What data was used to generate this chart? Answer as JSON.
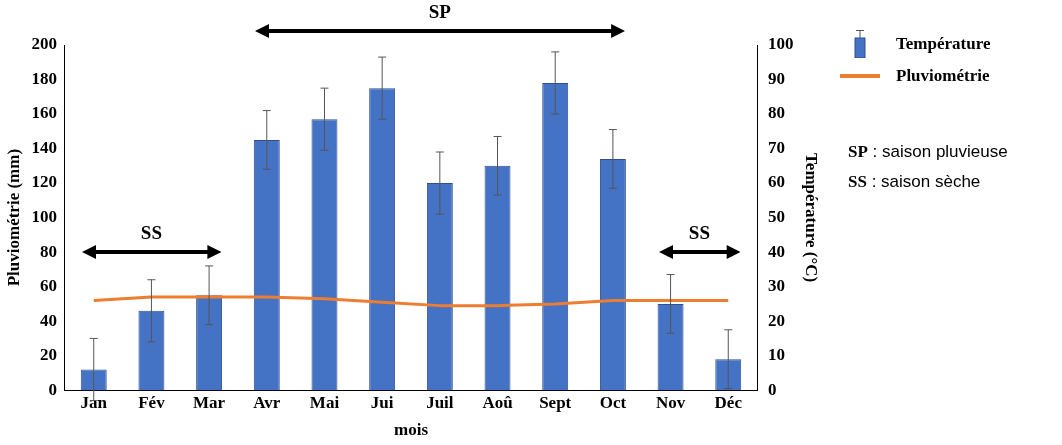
{
  "chart_data": {
    "type": "bar",
    "xlabel": "mois",
    "ylabel": "Pluviométrie (mm)",
    "y2label": "Température (°C)",
    "categories": [
      "Jan",
      "Fév",
      "Mar",
      "Avr",
      "Mai",
      "Jui",
      "Juil",
      "Aoû",
      "Sept",
      "Oct",
      "Nov",
      "Déc"
    ],
    "series": [
      {
        "name": "Température",
        "color": "#4472c4",
        "values": [
          12,
          46,
          55,
          145,
          157,
          175,
          120,
          130,
          178,
          134,
          50,
          18
        ],
        "errors": [
          18,
          18,
          17,
          17,
          18,
          18,
          18,
          17,
          18,
          17,
          17,
          17
        ]
      },
      {
        "name": "Pluviométrie",
        "type": "line",
        "axis": "y2",
        "color": "#ed7d31",
        "values": [
          26,
          27,
          27,
          27,
          26.5,
          25.5,
          24.5,
          24.5,
          25,
          26,
          26,
          26
        ]
      }
    ],
    "ylim": [
      0,
      200
    ],
    "yticks": [
      0,
      20,
      40,
      60,
      80,
      100,
      120,
      140,
      160,
      180,
      200
    ],
    "y2lim": [
      0,
      100
    ],
    "y2ticks": [
      0,
      10,
      20,
      30,
      40,
      50,
      60,
      70,
      80,
      90,
      100
    ],
    "grid": false,
    "legend": "right",
    "marker": "none",
    "line_style": "solid",
    "annotations": [
      "SP",
      "SS",
      "SS",
      "SP : saison pluvieuse",
      "SS : saison sèche"
    ]
  }
}
